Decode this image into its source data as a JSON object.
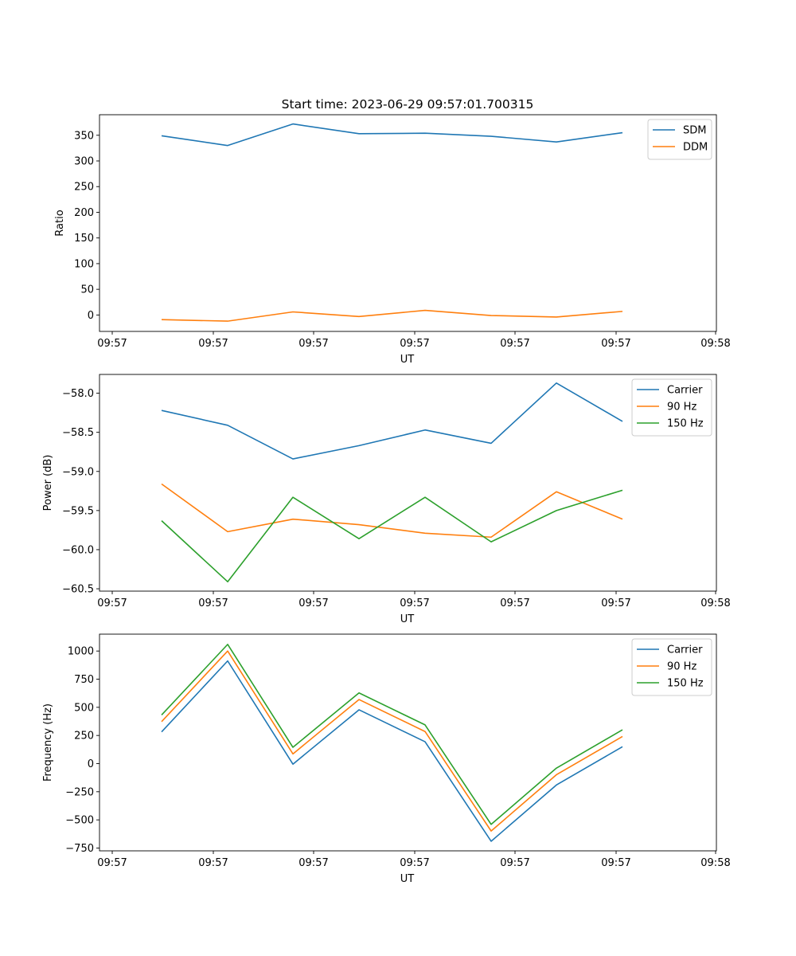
{
  "figure_title": "Start time: 2023-06-29 09:57:01.700315",
  "chart_data": [
    {
      "type": "line",
      "title": "Start time: 2023-06-29 09:57:01.700315",
      "xlabel": "UT",
      "ylabel": "Ratio",
      "x_tick_labels": [
        "09:57",
        "09:57",
        "09:57",
        "09:57",
        "09:57",
        "09:57",
        "09:57",
        "09:58"
      ],
      "y_ticks": [
        0,
        50,
        100,
        150,
        200,
        250,
        300,
        350
      ],
      "ylim": [
        -32,
        390
      ],
      "grid": false,
      "legend_position": "top-right",
      "series": [
        {
          "name": "SDM",
          "color": "#1f77b4",
          "values": [
            349,
            330,
            372,
            353,
            354,
            348,
            337,
            355
          ]
        },
        {
          "name": "DDM",
          "color": "#ff7f0e",
          "values": [
            -9,
            -12,
            6,
            -3,
            9,
            -1,
            -4,
            7
          ]
        }
      ]
    },
    {
      "type": "line",
      "xlabel": "UT",
      "ylabel": "Power (dB)",
      "x_tick_labels": [
        "09:57",
        "09:57",
        "09:57",
        "09:57",
        "09:57",
        "09:57",
        "09:57",
        "09:58"
      ],
      "y_ticks": [
        -58.0,
        -58.5,
        -59.0,
        -59.5,
        -60.0,
        -60.5
      ],
      "y_tick_labels": [
        "−58.0",
        "−58.5",
        "−59.0",
        "−59.5",
        "−60.0",
        "−60.5"
      ],
      "ylim": [
        -60.53,
        -57.76
      ],
      "grid": false,
      "legend_position": "top-right",
      "series": [
        {
          "name": "Carrier",
          "color": "#1f77b4",
          "values": [
            -58.22,
            -58.41,
            -58.84,
            -58.67,
            -58.47,
            -58.64,
            -57.87,
            -58.36
          ]
        },
        {
          "name": "90 Hz",
          "color": "#ff7f0e",
          "values": [
            -59.16,
            -59.77,
            -59.61,
            -59.68,
            -59.79,
            -59.84,
            -59.26,
            -59.61
          ]
        },
        {
          "name": "150 Hz",
          "color": "#2ca02c",
          "values": [
            -59.63,
            -60.41,
            -59.33,
            -59.86,
            -59.33,
            -59.9,
            -59.5,
            -59.24
          ]
        }
      ]
    },
    {
      "type": "line",
      "xlabel": "UT",
      "ylabel": "Frequency (Hz)",
      "x_tick_labels": [
        "09:57",
        "09:57",
        "09:57",
        "09:57",
        "09:57",
        "09:57",
        "09:57",
        "09:58"
      ],
      "y_ticks": [
        1000,
        750,
        500,
        250,
        0,
        -250,
        -500,
        -750
      ],
      "y_tick_labels": [
        "1000",
        "750",
        "500",
        "250",
        "0",
        "−250",
        "−500",
        "−750"
      ],
      "ylim": [
        -775,
        1150
      ],
      "grid": false,
      "legend_position": "top-right",
      "series": [
        {
          "name": "Carrier",
          "color": "#1f77b4",
          "values": [
            282,
            912,
            -5,
            478,
            194,
            -690,
            -190,
            150
          ]
        },
        {
          "name": "90 Hz",
          "color": "#ff7f0e",
          "values": [
            373,
            1000,
            86,
            569,
            285,
            -599,
            -99,
            241
          ]
        },
        {
          "name": "150 Hz",
          "color": "#2ca02c",
          "values": [
            432,
            1059,
            145,
            628,
            344,
            -540,
            -40,
            300
          ]
        }
      ]
    }
  ]
}
